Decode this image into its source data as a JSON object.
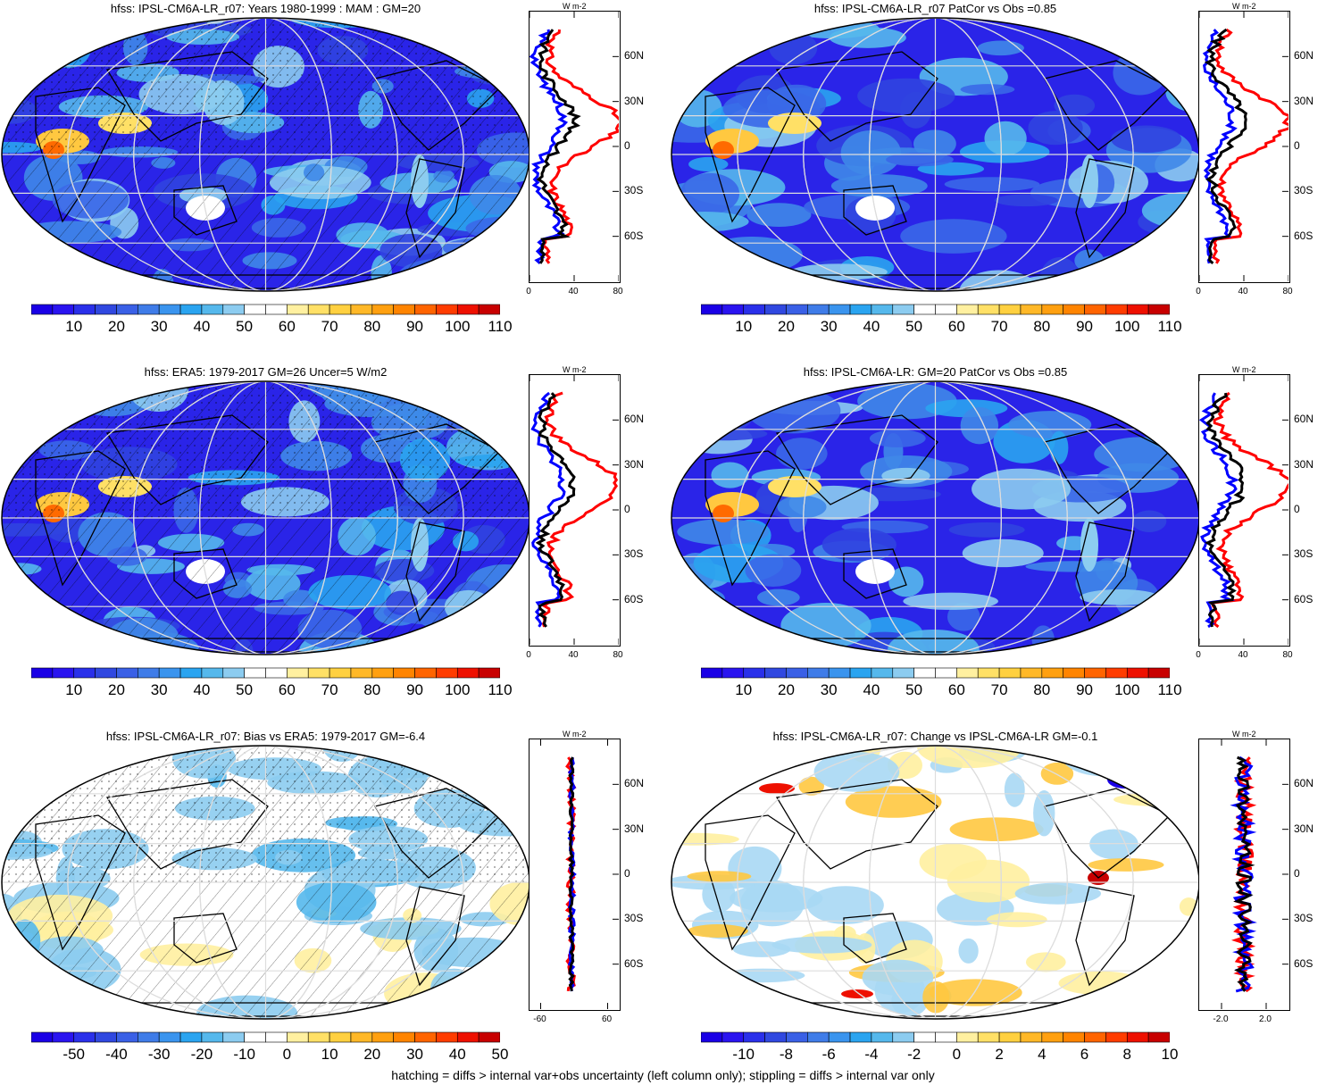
{
  "panels": [
    {
      "title": "hfss: IPSL-CM6A-LR_r07: Years 1980-1999 : MAM : GM=20",
      "colorbar": [
        "10",
        "20",
        "30",
        "40",
        "50",
        "60",
        "70",
        "80",
        "90",
        "100",
        "110"
      ],
      "scheme": "full",
      "hatched": true,
      "zonal_xticks": [
        "0",
        "40",
        "80"
      ],
      "zonal_xlim": [
        0,
        80
      ],
      "zonal_unit": "W m-2"
    },
    {
      "title": "hfss: IPSL-CM6A-LR_r07 PatCor vs Obs =0.85",
      "colorbar": [
        "10",
        "20",
        "30",
        "40",
        "50",
        "60",
        "70",
        "80",
        "90",
        "100",
        "110"
      ],
      "scheme": "full",
      "hatched": false,
      "zonal_xticks": [
        "0",
        "40",
        "80"
      ],
      "zonal_xlim": [
        0,
        80
      ],
      "zonal_unit": "W m-2"
    },
    {
      "title": "hfss: ERA5: 1979-2017 GM=26 Uncer=5 W/m2",
      "colorbar": [
        "10",
        "20",
        "30",
        "40",
        "50",
        "60",
        "70",
        "80",
        "90",
        "100",
        "110"
      ],
      "scheme": "full",
      "hatched": true,
      "zonal_xticks": [
        "0",
        "40",
        "80"
      ],
      "zonal_xlim": [
        0,
        80
      ],
      "zonal_unit": "W m-2"
    },
    {
      "title": "hfss: IPSL-CM6A-LR: GM=20 PatCor vs Obs =0.85",
      "colorbar": [
        "10",
        "20",
        "30",
        "40",
        "50",
        "60",
        "70",
        "80",
        "90",
        "100",
        "110"
      ],
      "scheme": "full",
      "hatched": false,
      "zonal_xticks": [
        "0",
        "40",
        "80"
      ],
      "zonal_xlim": [
        0,
        80
      ],
      "zonal_unit": "W m-2"
    },
    {
      "title": "hfss: IPSL-CM6A-LR_r07: Bias vs ERA5: 1979-2017 GM=-6.4",
      "colorbar": [
        "-50",
        "-40",
        "-30",
        "-20",
        "-10",
        "0",
        "10",
        "20",
        "30",
        "40",
        "50"
      ],
      "scheme": "bias",
      "hatched": true,
      "zonal_xticks": [
        "-60",
        "60"
      ],
      "zonal_xlim": [
        -80,
        80
      ],
      "zonal_unit": "W m-2"
    },
    {
      "title": "hfss: IPSL-CM6A-LR_r07: Change vs IPSL-CM6A-LR GM=-0.1",
      "colorbar": [
        "-10",
        "-8",
        "-6",
        "-4",
        "-2",
        "0",
        "2",
        "4",
        "6",
        "8",
        "10"
      ],
      "scheme": "change",
      "hatched": false,
      "zonal_xticks": [
        "-2.0",
        "2.0"
      ],
      "zonal_xlim": [
        -4,
        4
      ],
      "zonal_unit": "W m-2"
    }
  ],
  "lat_labels": [
    "60N",
    "30N",
    "0",
    "30S",
    "60S"
  ],
  "palette": [
    "#1a00e6",
    "#2a14f0",
    "#3044e0",
    "#3a68e8",
    "#3f88e8",
    "#2aa4f0",
    "#55b8ec",
    "#8cccf0",
    "#ffffff",
    "#ffffff",
    "#fff0a0",
    "#ffe066",
    "#ffc840",
    "#ffa820",
    "#ff8a10",
    "#ff6a00",
    "#ff3a00",
    "#ee1000",
    "#c80000"
  ],
  "footnote": "hatching = diffs > internal var+obs uncertainty (left column only); stippling = diffs > internal var only"
}
